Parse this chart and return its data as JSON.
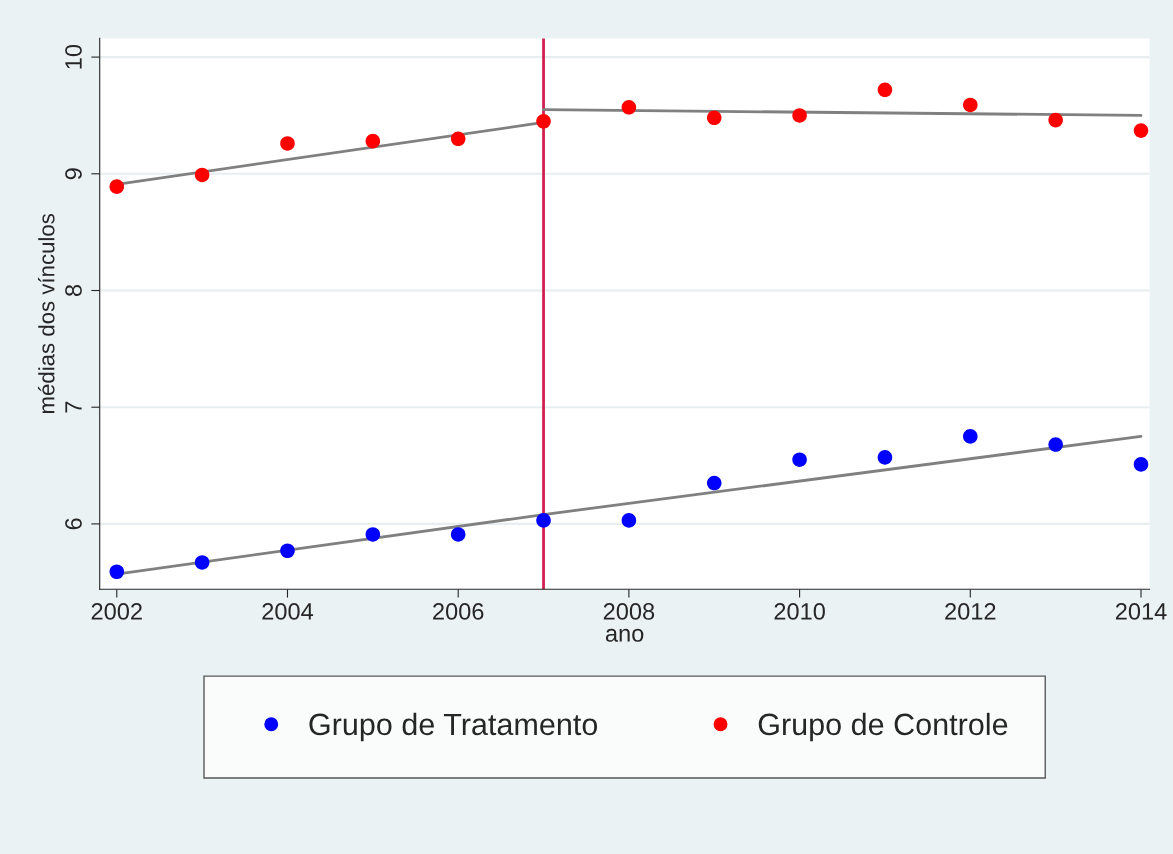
{
  "chart_data": {
    "type": "scatter",
    "xlabel": "ano",
    "ylabel": "médias dos vínculos",
    "xlim": [
      2001.8,
      2014.1
    ],
    "xticks": [
      2002,
      2004,
      2006,
      2008,
      2010,
      2012,
      2014
    ],
    "ylim": [
      5.44,
      10.16
    ],
    "yticks": [
      6,
      7,
      8,
      9,
      10
    ],
    "grid": "y",
    "legend": "bottom",
    "marker": "circle",
    "series": [
      {
        "name": "Grupo de Tratamento",
        "color": "#0000ff",
        "x": [
          2002,
          2003,
          2004,
          2005,
          2006,
          2007,
          2008,
          2009,
          2010,
          2011,
          2012,
          2013,
          2014
        ],
        "values": [
          5.59,
          5.67,
          5.77,
          5.91,
          5.91,
          6.03,
          6.03,
          6.35,
          6.55,
          6.57,
          6.75,
          6.68,
          6.51
        ]
      },
      {
        "name": "Grupo de Controle",
        "color": "#ff0000",
        "x": [
          2002,
          2003,
          2004,
          2005,
          2006,
          2007,
          2008,
          2009,
          2010,
          2011,
          2012,
          2013,
          2014
        ],
        "values": [
          8.89,
          8.99,
          9.26,
          9.28,
          9.3,
          9.45,
          9.57,
          9.48,
          9.5,
          9.72,
          9.59,
          9.46,
          9.37
        ]
      },
      {
        "type": "line",
        "marker": "none",
        "color": "#808080",
        "x": [
          2002,
          2007,
          2014
        ],
        "values": [
          5.57,
          6.08,
          6.75
        ]
      },
      {
        "type": "line",
        "marker": "none",
        "color": "#808080",
        "x": [
          2002,
          2007
        ],
        "values": [
          8.91,
          9.44
        ]
      },
      {
        "type": "line",
        "marker": "none",
        "color": "#808080",
        "x": [
          2007,
          2014
        ],
        "values": [
          9.55,
          9.5
        ]
      }
    ],
    "ref_lines": [
      {
        "axis": "x",
        "value": 2007,
        "color": "#d02050"
      }
    ]
  }
}
